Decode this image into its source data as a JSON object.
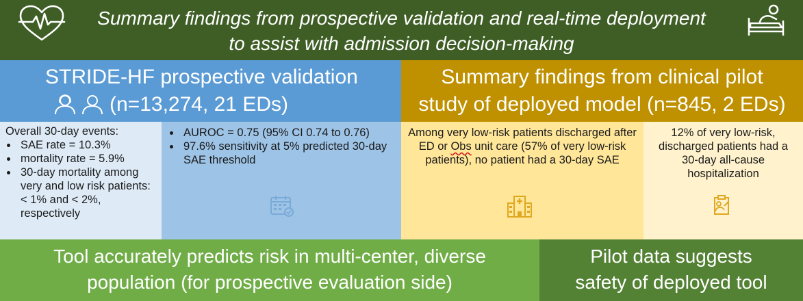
{
  "banner": {
    "title": "Summary findings from prospective validation and real-time deployment to assist with admission decision-making",
    "left_icon": "heart-pulse-icon",
    "right_icon": "hospital-bed-icon"
  },
  "validation": {
    "title": "STRIDE-HF prospective validation",
    "n": "(n=13,274, 21 EDs)",
    "icon": "people-icon",
    "overall_heading": "Overall 30-day events:",
    "overall_items": [
      "SAE rate = 10.3%",
      "mortality rate = 5.9%",
      "30-day mortality among very and low risk patients: < 1% and < 2%, respectively"
    ],
    "metrics": [
      "AUROC = 0.75 (95% CI 0.74 to 0.76)",
      "97.6% sensitivity at 5% predicted 30-day SAE threshold"
    ],
    "metrics_icon": "calendar-check-icon"
  },
  "pilot": {
    "title_line1": "Summary findings from clinical pilot",
    "title_line2": "study of deployed model (n=845, 2 EDs)",
    "finding1_part1": "Among very low-risk patients discharged after ED or ",
    "finding1_obs": "Obs",
    "finding1_part2": " unit care (57% of very low-risk patients), no patient had a 30-day SAE",
    "finding1_icon": "hospital-icon",
    "finding2": "12% of very low-risk, discharged patients had a 30-day all-cause hospitalization",
    "finding2_icon": "clipboard-icon"
  },
  "footer": {
    "left_line1": "Tool accurately predicts risk in multi-center, diverse",
    "left_line2": "population (for prospective evaluation side)",
    "right_line1": "Pilot data suggests",
    "right_line2": "safety of deployed tool"
  },
  "colors": {
    "banner": "#3f5e26",
    "validation_header": "#5b9bd5",
    "pilot_header": "#bf9000",
    "footer_left": "#70ad47",
    "footer_right": "#548235"
  }
}
